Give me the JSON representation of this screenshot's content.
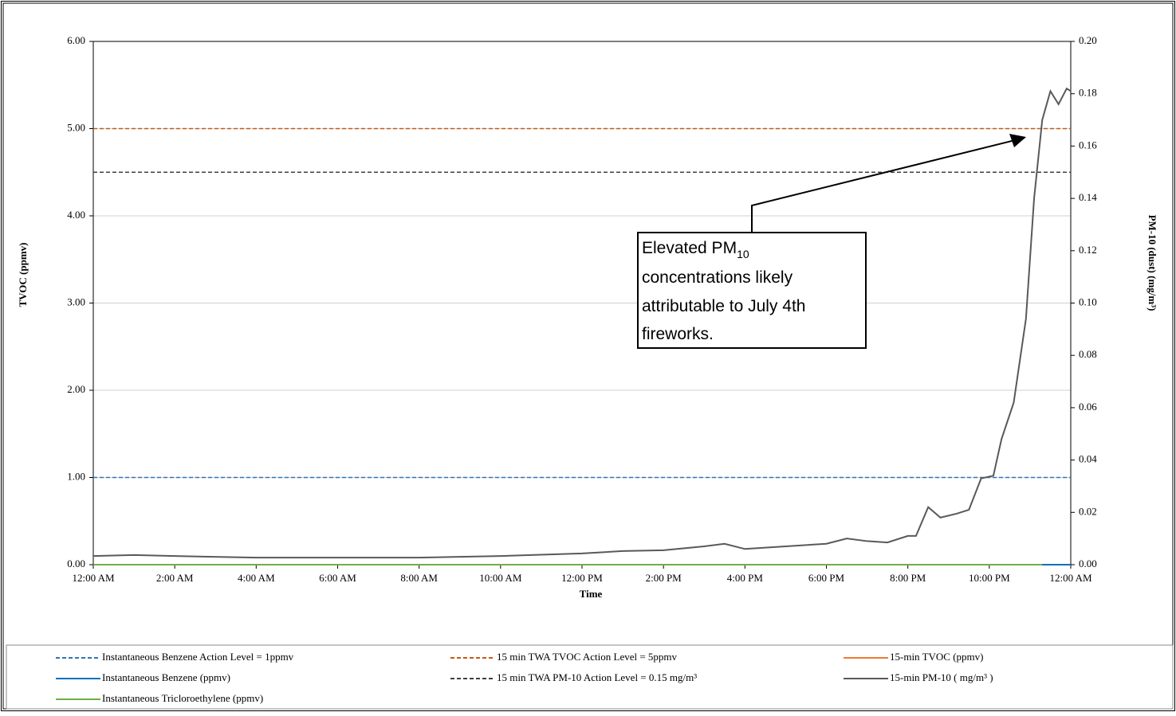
{
  "chart_data": {
    "type": "line",
    "xlabel": "Time",
    "ylabel": "TVOC  (ppmv)",
    "y2label": "PM-10 (dust)  (mg/m³)",
    "xlim": [
      0,
      24
    ],
    "xticks": [
      {
        "value": 0,
        "label": "12:00 AM"
      },
      {
        "value": 2,
        "label": "2:00 AM"
      },
      {
        "value": 4,
        "label": "4:00 AM"
      },
      {
        "value": 6,
        "label": "6:00 AM"
      },
      {
        "value": 8,
        "label": "8:00 AM"
      },
      {
        "value": 10,
        "label": "10:00 AM"
      },
      {
        "value": 12,
        "label": "12:00 PM"
      },
      {
        "value": 14,
        "label": "2:00 PM"
      },
      {
        "value": 16,
        "label": "4:00 PM"
      },
      {
        "value": 18,
        "label": "6:00 PM"
      },
      {
        "value": 20,
        "label": "8:00 PM"
      },
      {
        "value": 22,
        "label": "10:00 PM"
      },
      {
        "value": 24,
        "label": "12:00 AM"
      }
    ],
    "ylim": [
      0,
      6
    ],
    "yticks": [
      {
        "value": 0,
        "label": "0.00"
      },
      {
        "value": 1,
        "label": "1.00"
      },
      {
        "value": 2,
        "label": "2.00"
      },
      {
        "value": 3,
        "label": "3.00"
      },
      {
        "value": 4,
        "label": "4.00"
      },
      {
        "value": 5,
        "label": "5.00"
      },
      {
        "value": 6,
        "label": "6.00"
      }
    ],
    "y2lim": [
      0,
      0.2
    ],
    "y2ticks": [
      {
        "value": 0,
        "label": "0.00"
      },
      {
        "value": 0.02,
        "label": "0.02"
      },
      {
        "value": 0.04,
        "label": "0.04"
      },
      {
        "value": 0.06,
        "label": "0.06"
      },
      {
        "value": 0.08,
        "label": "0.08"
      },
      {
        "value": 0.1,
        "label": "0.10"
      },
      {
        "value": 0.12,
        "label": "0.12"
      },
      {
        "value": 0.14,
        "label": "0.14"
      },
      {
        "value": 0.16,
        "label": "0.16"
      },
      {
        "value": 0.18,
        "label": "0.18"
      },
      {
        "value": 0.2,
        "label": "0.20"
      }
    ],
    "grid": true,
    "series": [
      {
        "name": "Instantaneous Benzene Action Level = 1ppmv",
        "color": "#2e75b6",
        "dashed": true,
        "x": [
          0,
          24
        ],
        "values": [
          1,
          1
        ]
      },
      {
        "name": "15 min TWA TVOC Action Level = 5ppmv",
        "color": "#c55a11",
        "dashed": true,
        "x": [
          0,
          24
        ],
        "values": [
          5,
          5
        ]
      },
      {
        "name": "15-min TVOC (ppmv)",
        "color": "#ed7d31",
        "dashed": false,
        "x": [
          0,
          24
        ],
        "values": [
          0,
          0
        ]
      },
      {
        "name": "Instantaneous Benzene (ppmv)",
        "color": "#0070c0",
        "dashed": false,
        "x": [
          0,
          24
        ],
        "values": [
          0,
          0
        ]
      },
      {
        "name": "15 min TWA PM-10 Action Level = 0.15 mg/m³",
        "color": "#404040",
        "dashed": true,
        "axis": "y2",
        "x": [
          0,
          24
        ],
        "values": [
          0.15,
          0.15
        ]
      },
      {
        "name": "15-min PM-10 ( mg/m³ )",
        "color": "#595959",
        "dashed": false,
        "axis": "y2",
        "x": [
          0,
          1,
          2,
          4,
          8,
          10,
          12,
          13,
          14,
          15,
          15.5,
          16,
          17,
          18,
          18.5,
          19,
          19.5,
          20,
          20.2,
          20.5,
          20.8,
          21.2,
          21.5,
          21.8,
          22.1,
          22.3,
          22.6,
          22.9,
          23.1,
          23.3,
          23.5,
          23.7,
          23.9,
          24
        ],
        "values": [
          0.0033,
          0.0037,
          0.0033,
          0.0027,
          0.0027,
          0.0033,
          0.0043,
          0.0052,
          0.0055,
          0.007,
          0.008,
          0.006,
          0.007,
          0.008,
          0.01,
          0.009,
          0.0085,
          0.011,
          0.011,
          0.022,
          0.018,
          0.0195,
          0.021,
          0.033,
          0.034,
          0.048,
          0.062,
          0.094,
          0.14,
          0.17,
          0.181,
          0.176,
          0.182,
          0.181
        ]
      },
      {
        "name": "Instantaneous Tricloroethylene (ppmv)",
        "color": "#70ad47",
        "dashed": false,
        "x": [
          0,
          23.3
        ],
        "values": [
          0,
          0
        ]
      }
    ],
    "annotation": {
      "lines": [
        "Elevated PM",
        "concentrations likely",
        "attributable to July 4th",
        "fireworks."
      ],
      "subscript": "10"
    }
  }
}
